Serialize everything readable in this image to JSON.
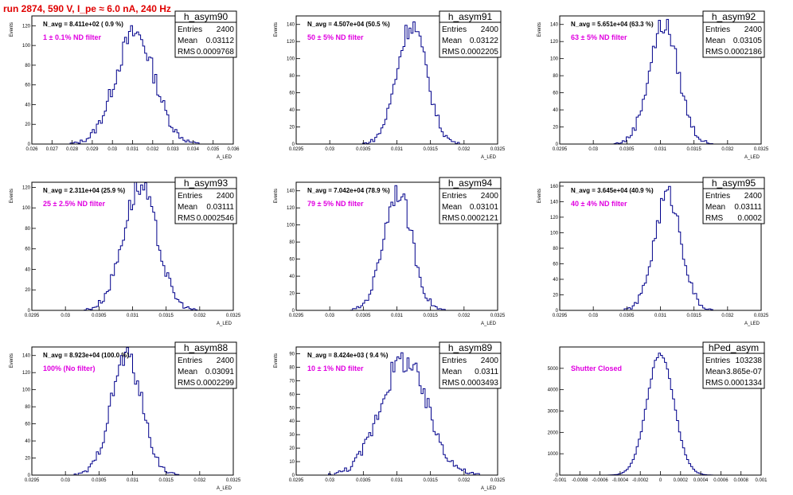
{
  "title": "run 2874,   590 V, I_pe ≈ 6.0 nA, 240 Hz",
  "chart_data": [
    {
      "type": "histogram",
      "name": "h_asym90",
      "entries": "2400",
      "mean": "0.03112",
      "rms": "0.0009768",
      "n_avg": "N_avg = 8.411e+02 ( 0.9 %)",
      "filter": "1 ± 0.1% ND filter",
      "ylabel": "Events",
      "xlabel": "A_LED",
      "xlim": [
        0.026,
        0.036
      ],
      "ylim": [
        0,
        130
      ],
      "xticks": [
        "0.026",
        "0.027",
        "0.028",
        "0.029",
        "0.03",
        "0.031",
        "0.032",
        "0.033",
        "0.034",
        "0.035",
        "0.036"
      ],
      "yticks": [
        0,
        20,
        40,
        60,
        80,
        100,
        120
      ],
      "dist": {
        "mean": 0.03112,
        "sigma": 0.0009768,
        "peak": 112
      }
    },
    {
      "type": "histogram",
      "name": "h_asym91",
      "entries": "2400",
      "mean": "0.03122",
      "rms": "0.0002205",
      "n_avg": "N_avg = 4.507e+04 (50.5 %)",
      "filter": "50 ± 5% ND filter",
      "ylabel": "Events",
      "xlabel": "A_LED",
      "xlim": [
        0.0295,
        0.0325
      ],
      "ylim": [
        0,
        150
      ],
      "xticks": [
        "0.0295",
        "0.03",
        "0.0305",
        "0.031",
        "0.0315",
        "0.032",
        "0.0325"
      ],
      "yticks": [
        0,
        20,
        40,
        60,
        80,
        100,
        120,
        140
      ],
      "dist": {
        "mean": 0.03122,
        "sigma": 0.0002205,
        "peak": 140
      }
    },
    {
      "type": "histogram",
      "name": "h_asym92",
      "entries": "2400",
      "mean": "0.03105",
      "rms": "0.0002186",
      "n_avg": "N_avg = 5.651e+04 (63.3 %)",
      "filter": "63 ± 5% ND filter",
      "ylabel": "Events",
      "xlabel": "A_LED",
      "xlim": [
        0.0295,
        0.0325
      ],
      "ylim": [
        0,
        150
      ],
      "xticks": [
        "0.0295",
        "0.03",
        "0.0305",
        "0.031",
        "0.0315",
        "0.032",
        "0.0325"
      ],
      "yticks": [
        0,
        20,
        40,
        60,
        80,
        100,
        120,
        140
      ],
      "dist": {
        "mean": 0.03105,
        "sigma": 0.0002186,
        "peak": 140
      }
    },
    {
      "type": "histogram",
      "name": "h_asym93",
      "entries": "2400",
      "mean": "0.03111",
      "rms": "0.0002546",
      "n_avg": "N_avg = 2.311e+04 (25.9 %)",
      "filter": "25 ± 2.5% ND filter",
      "ylabel": "Events",
      "xlabel": "A_LED",
      "xlim": [
        0.0295,
        0.0325
      ],
      "ylim": [
        0,
        125
      ],
      "xticks": [
        "0.0295",
        "0.03",
        "0.0305",
        "0.031",
        "0.0315",
        "0.032",
        "0.0325"
      ],
      "yticks": [
        0,
        20,
        40,
        60,
        80,
        100,
        120
      ],
      "dist": {
        "mean": 0.03111,
        "sigma": 0.0002546,
        "peak": 120
      }
    },
    {
      "type": "histogram",
      "name": "h_asym94",
      "entries": "2400",
      "mean": "0.03101",
      "rms": "0.0002121",
      "n_avg": "N_avg = 7.042e+04 (78.9 %)",
      "filter": "79 ± 5% ND filter",
      "ylabel": "Events",
      "xlabel": "A_LED",
      "xlim": [
        0.0295,
        0.0325
      ],
      "ylim": [
        0,
        150
      ],
      "xticks": [
        "0.0295",
        "0.03",
        "0.0305",
        "0.031",
        "0.0315",
        "0.032",
        "0.0325"
      ],
      "yticks": [
        0,
        20,
        40,
        60,
        80,
        100,
        120,
        140
      ],
      "dist": {
        "mean": 0.03101,
        "sigma": 0.0002121,
        "peak": 140
      }
    },
    {
      "type": "histogram",
      "name": "h_asym95",
      "entries": "2400",
      "mean": "0.03111",
      "rms": "0.0002",
      "n_avg": "N_avg = 3.645e+04 (40.9 %)",
      "filter": "40 ± 4% ND filter",
      "ylabel": "Events",
      "xlabel": "A_LED",
      "xlim": [
        0.0295,
        0.0325
      ],
      "ylim": [
        0,
        165
      ],
      "xticks": [
        "0.0295",
        "0.03",
        "0.0305",
        "0.031",
        "0.0315",
        "0.032",
        "0.0325"
      ],
      "yticks": [
        0,
        20,
        40,
        60,
        80,
        100,
        120,
        140,
        160
      ],
      "dist": {
        "mean": 0.03111,
        "sigma": 0.0002,
        "peak": 150
      }
    },
    {
      "type": "histogram",
      "name": "h_asym88",
      "entries": "2400",
      "mean": "0.03091",
      "rms": "0.0002299",
      "n_avg": "N_avg = 8.923e+04 (100.0 %)",
      "filter": "100% (No filter)",
      "ylabel": "Events",
      "xlabel": "A_LED",
      "xlim": [
        0.0295,
        0.0325
      ],
      "ylim": [
        0,
        150
      ],
      "xticks": [
        "0.0295",
        "0.03",
        "0.0305",
        "0.031",
        "0.0315",
        "0.032",
        "0.0325"
      ],
      "yticks": [
        0,
        20,
        40,
        60,
        80,
        100,
        120,
        140
      ],
      "dist": {
        "mean": 0.03091,
        "sigma": 0.0002299,
        "peak": 140
      }
    },
    {
      "type": "histogram",
      "name": "h_asym89",
      "entries": "2400",
      "mean": "0.0311",
      "rms": "0.0003493",
      "n_avg": "N_avg = 8.424e+03 ( 9.4 %)",
      "filter": "10 ± 1% ND filter",
      "ylabel": "Events",
      "xlabel": "A_LED",
      "xlim": [
        0.0295,
        0.0325
      ],
      "ylim": [
        0,
        95
      ],
      "xticks": [
        "0.0295",
        "0.03",
        "0.0305",
        "0.031",
        "0.0315",
        "0.032",
        "0.0325"
      ],
      "yticks": [
        0,
        10,
        20,
        30,
        40,
        50,
        60,
        70,
        80,
        90
      ],
      "dist": {
        "mean": 0.0311,
        "sigma": 0.0003493,
        "peak": 85
      }
    },
    {
      "type": "histogram",
      "name": "hPed_asym",
      "entries": "103238",
      "mean": "-3.865e-07",
      "rms": "0.0001334",
      "n_avg": "",
      "filter": "Shutter Closed",
      "ylabel": "",
      "xlabel": "",
      "xlim": [
        -0.001,
        0.001
      ],
      "ylim": [
        0,
        6000
      ],
      "xticks": [
        "-0.001",
        "-0.0008",
        "-0.0006",
        "-0.0004",
        "-0.0002",
        "0",
        "0.0002",
        "0.0004",
        "0.0006",
        "0.0008",
        "0.001"
      ],
      "yticks": [
        0,
        1000,
        2000,
        3000,
        4000,
        5000
      ],
      "ytick_labels": [
        "0",
        "1000",
        "2000",
        "3000",
        "4000",
        "5000"
      ],
      "dist": {
        "mean": -3.87e-07,
        "sigma": 0.0001334,
        "peak": 5700
      }
    }
  ],
  "labels": {
    "entries": "Entries",
    "mean": "Mean",
    "rms": "RMS"
  }
}
